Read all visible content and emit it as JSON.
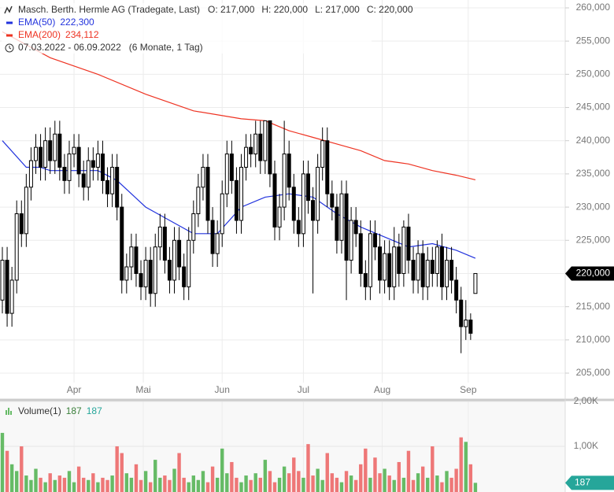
{
  "chart_data": {
    "type": "candlestick",
    "title": "Masch. Berth. Hermle AG (Tradegate, Last)",
    "ohlc_text": [
      "O: 217,000",
      "H: 220,000",
      "L: 217,000",
      "C: 220,000"
    ],
    "period": "07.03.2022 - 06.09.2022",
    "period_note": "(6 Monate, 1 Tag)",
    "up_color": "#ffffff",
    "down_color": "#000000",
    "open": [
      216000,
      222000,
      214000,
      219000,
      229000,
      226000,
      233000,
      237000,
      239000,
      236000,
      240000,
      237000,
      241000,
      236000,
      234000,
      238000,
      239000,
      235000,
      233000,
      237000,
      236000,
      238000,
      234000,
      232000,
      236000,
      230000,
      219000,
      221000,
      224000,
      220000,
      218000,
      222000,
      217000,
      224000,
      227000,
      222000,
      219000,
      225000,
      221000,
      218000,
      225000,
      229000,
      233000,
      236000,
      228000,
      223000,
      226000,
      232000,
      238000,
      234000,
      228000,
      236000,
      239000,
      238000,
      241000,
      237000,
      243000,
      235000,
      227000,
      230000,
      238000,
      233000,
      228000,
      226000,
      235000,
      231000,
      228000,
      236000,
      240000,
      232000,
      230000,
      225000,
      232000,
      222000,
      228000,
      226000,
      220000,
      218000,
      226000,
      224000,
      219000,
      223000,
      218000,
      224000,
      220000,
      227000,
      222000,
      219000,
      223000,
      218000,
      222000,
      220000,
      224000,
      218000,
      222000,
      219000,
      216000,
      212000,
      213000,
      217000
    ],
    "high": [
      224000,
      224000,
      221000,
      231000,
      231000,
      235000,
      239000,
      241000,
      241000,
      242000,
      242000,
      243000,
      243000,
      238000,
      240000,
      241000,
      241000,
      237000,
      239000,
      239000,
      240000,
      240000,
      236000,
      238000,
      238000,
      232000,
      223000,
      226000,
      226000,
      222000,
      224000,
      224000,
      226000,
      229000,
      229000,
      224000,
      227000,
      227000,
      223000,
      227000,
      231000,
      235000,
      238000,
      238000,
      230000,
      228000,
      234000,
      240000,
      240000,
      236000,
      238000,
      241000,
      241000,
      243000,
      243000,
      243000,
      243000,
      237000,
      232000,
      243000,
      240000,
      235000,
      230000,
      237000,
      237000,
      233000,
      238000,
      242000,
      242000,
      234000,
      232000,
      234000,
      234000,
      230000,
      230000,
      228000,
      222000,
      228000,
      228000,
      226000,
      225000,
      225000,
      227000,
      226000,
      228000,
      229000,
      224000,
      225000,
      225000,
      224000,
      224000,
      225000,
      226000,
      224000,
      224000,
      221000,
      218000,
      216000,
      214000,
      220000
    ],
    "low": [
      214000,
      212000,
      212000,
      217000,
      224000,
      224000,
      231000,
      235000,
      234000,
      234000,
      235000,
      235000,
      234000,
      232000,
      232000,
      236000,
      233000,
      231000,
      231000,
      234000,
      234000,
      232000,
      230000,
      230000,
      228000,
      217000,
      217000,
      219000,
      218000,
      216000,
      216000,
      215000,
      215000,
      222000,
      220000,
      217000,
      217000,
      219000,
      216000,
      216000,
      223000,
      227000,
      231000,
      226000,
      221000,
      221000,
      224000,
      230000,
      232000,
      226000,
      226000,
      234000,
      236000,
      236000,
      235000,
      235000,
      233000,
      225000,
      225000,
      228000,
      231000,
      226000,
      224000,
      224000,
      229000,
      217000,
      226000,
      234000,
      230000,
      228000,
      223000,
      223000,
      216000,
      220000,
      224000,
      218000,
      216000,
      216000,
      222000,
      217000,
      217000,
      216000,
      216000,
      218000,
      218000,
      220000,
      217000,
      217000,
      216000,
      216000,
      218000,
      218000,
      216000,
      216000,
      217000,
      214000,
      208000,
      210000,
      210000,
      217000
    ],
    "close": [
      222000,
      214000,
      219000,
      229000,
      226000,
      233000,
      237000,
      239000,
      236000,
      240000,
      237000,
      241000,
      236000,
      234000,
      238000,
      239000,
      235000,
      233000,
      237000,
      236000,
      238000,
      234000,
      232000,
      236000,
      230000,
      219000,
      221000,
      224000,
      220000,
      218000,
      222000,
      217000,
      224000,
      227000,
      222000,
      219000,
      225000,
      221000,
      218000,
      225000,
      229000,
      233000,
      236000,
      228000,
      223000,
      226000,
      232000,
      238000,
      234000,
      228000,
      236000,
      239000,
      238000,
      241000,
      237000,
      243000,
      235000,
      227000,
      230000,
      238000,
      233000,
      228000,
      226000,
      235000,
      231000,
      228000,
      236000,
      240000,
      232000,
      230000,
      225000,
      232000,
      222000,
      228000,
      226000,
      220000,
      218000,
      226000,
      224000,
      219000,
      223000,
      218000,
      224000,
      220000,
      227000,
      222000,
      219000,
      223000,
      218000,
      222000,
      220000,
      224000,
      218000,
      222000,
      219000,
      216000,
      212000,
      213000,
      211000,
      220000
    ],
    "last_label": "220,000",
    "lines": [
      {
        "name": "EMA(50)",
        "value_label": "222,300",
        "color": "#2233dd",
        "x": [
          0,
          5,
          8,
          10,
          20,
          24,
          30,
          35,
          40,
          45,
          50,
          55,
          60,
          65,
          70,
          75,
          80,
          85,
          90,
          95,
          99
        ],
        "values": [
          240000,
          236000,
          236000,
          235500,
          235500,
          234000,
          230000,
          228000,
          226000,
          226000,
          230000,
          231500,
          232000,
          231500,
          229000,
          227000,
          225500,
          224000,
          224500,
          223500,
          222300
        ]
      },
      {
        "name": "EMA(200)",
        "value_label": "234,112",
        "color": "#ee3322",
        "x": [
          0,
          10,
          20,
          30,
          40,
          50,
          55,
          60,
          65,
          70,
          75,
          80,
          85,
          90,
          95,
          99
        ],
        "values": [
          256400,
          252500,
          250000,
          247000,
          244500,
          243300,
          243000,
          241500,
          240500,
          239500,
          238500,
          237000,
          236500,
          235500,
          234800,
          234112
        ]
      }
    ],
    "ylim": [
      205000,
      260000
    ],
    "yticks": [
      {
        "value": 205000,
        "label": "205,000"
      },
      {
        "value": 210000,
        "label": "210,000"
      },
      {
        "value": 215000,
        "label": "215,000"
      },
      {
        "value": 220000,
        "label": "220,000"
      },
      {
        "value": 225000,
        "label": "225,000"
      },
      {
        "value": 230000,
        "label": "230,000"
      },
      {
        "value": 235000,
        "label": "235,000"
      },
      {
        "value": 240000,
        "label": "240,000"
      },
      {
        "value": 245000,
        "label": "245,000"
      },
      {
        "value": 250000,
        "label": "250,000"
      },
      {
        "value": 255000,
        "label": "255,000"
      },
      {
        "value": 260000,
        "label": "260,000"
      }
    ],
    "xticks": [
      {
        "value": 15,
        "label": "Apr"
      },
      {
        "value": 29.5,
        "label": "Mai"
      },
      {
        "value": 46,
        "label": "Jun"
      },
      {
        "value": 63,
        "label": "Jul"
      },
      {
        "value": 79.5,
        "label": "Aug"
      },
      {
        "value": 97.5,
        "label": "Sep"
      }
    ],
    "grid": true,
    "volume": {
      "name": "Volume(1)",
      "labels": [
        "187",
        "187"
      ],
      "last_label": "187",
      "up_color": "#66bb66",
      "down_color": "#ee7777",
      "tag_color": "#26a69a",
      "values": [
        1300,
        900,
        600,
        450,
        1000,
        350,
        250,
        500,
        300,
        200,
        400,
        250,
        350,
        300,
        450,
        200,
        550,
        300,
        250,
        400,
        200,
        300,
        250,
        350,
        1000,
        850,
        400,
        300,
        600,
        250,
        450,
        200,
        700,
        300,
        350,
        250,
        500,
        850,
        300,
        200,
        350,
        250,
        450,
        200,
        550,
        300,
        950,
        400,
        650,
        300,
        200,
        350,
        250,
        400,
        300,
        700,
        450,
        200,
        300,
        550,
        400,
        750,
        450,
        300,
        1050,
        350,
        500,
        250,
        850,
        400,
        300,
        200,
        450,
        350,
        250,
        600,
        950,
        300,
        750,
        400,
        500,
        350,
        250,
        650,
        300,
        900,
        250,
        400,
        550,
        300,
        1000,
        350,
        200,
        450,
        300,
        500,
        1200,
        1100,
        600,
        187
      ],
      "ylim": [
        0,
        2000
      ],
      "yticks": [
        {
          "value": 1000,
          "label": "1,00K"
        },
        {
          "value": 2000,
          "label": "2,00K"
        }
      ]
    }
  }
}
